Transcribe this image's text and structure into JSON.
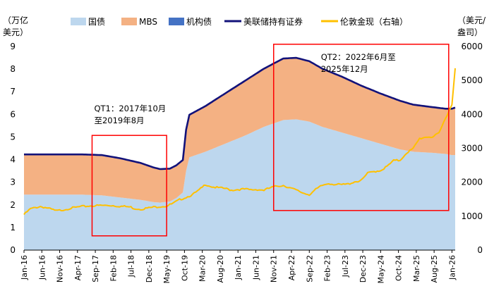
{
  "chart_data": {
    "type": "area",
    "title": "",
    "left_axis": {
      "unit_line1": "（万亿",
      "unit_line2": "美元）",
      "ylim": [
        0,
        9
      ],
      "ticks": [
        "0",
        "1",
        "2",
        "3",
        "4",
        "5",
        "6",
        "7",
        "8",
        "9"
      ]
    },
    "right_axis": {
      "unit_line1": "（美元/",
      "unit_line2": "盎司）",
      "ylim": [
        0,
        6000
      ],
      "ticks": [
        "0",
        "1000",
        "2000",
        "3000",
        "4000",
        "5000",
        "6000"
      ]
    },
    "x_labels": [
      "Jan-16",
      "Jun-16",
      "Nov-16",
      "Apr-17",
      "Sep-17",
      "Feb-18",
      "Jul-18",
      "Dec-18",
      "May-19",
      "Oct-19",
      "Mar-20",
      "Aug-20",
      "Jan-21",
      "Jun-21",
      "Nov-21",
      "Apr-22",
      "Sep-22",
      "Feb-23",
      "Jul-23",
      "Dec-23",
      "May-24",
      "Oct-24",
      "Mar-25",
      "Aug-25",
      "Jan-26"
    ],
    "legend": [
      {
        "name": "国债",
        "kind": "area",
        "color": "#BDD7EE"
      },
      {
        "name": "MBS",
        "kind": "area",
        "color": "#F4B183"
      },
      {
        "name": "机构债",
        "kind": "area",
        "color": "#4472C4"
      },
      {
        "name": "美联储持有证券",
        "kind": "line",
        "color": "#12127A"
      },
      {
        "name": "伦敦金现（右轴）",
        "kind": "line",
        "color": "#FFC000"
      }
    ],
    "series": [
      {
        "name": "国债",
        "axis": "left",
        "points": [
          [
            0,
            2.45
          ],
          [
            8,
            2.45
          ],
          [
            18,
            2.45
          ],
          [
            24,
            2.42
          ],
          [
            30,
            2.32
          ],
          [
            36,
            2.22
          ],
          [
            40,
            2.12
          ],
          [
            42,
            2.1
          ],
          [
            45,
            2.15
          ],
          [
            47,
            2.3
          ],
          [
            49,
            2.55
          ],
          [
            50,
            3.5
          ],
          [
            51,
            4.1
          ],
          [
            56,
            4.35
          ],
          [
            62,
            4.7
          ],
          [
            68,
            5.05
          ],
          [
            74,
            5.45
          ],
          [
            80,
            5.75
          ],
          [
            84,
            5.78
          ],
          [
            88,
            5.68
          ],
          [
            92,
            5.45
          ],
          [
            98,
            5.2
          ],
          [
            104,
            4.95
          ],
          [
            110,
            4.7
          ],
          [
            116,
            4.45
          ],
          [
            120,
            4.35
          ],
          [
            126,
            4.3
          ],
          [
            130,
            4.25
          ],
          [
            132,
            4.2
          ],
          [
            133,
            4.2
          ]
        ]
      },
      {
        "name": "MBS",
        "axis": "left",
        "points": [
          [
            0,
            1.75
          ],
          [
            8,
            1.75
          ],
          [
            18,
            1.75
          ],
          [
            24,
            1.74
          ],
          [
            30,
            1.7
          ],
          [
            36,
            1.6
          ],
          [
            40,
            1.5
          ],
          [
            42,
            1.45
          ],
          [
            45,
            1.42
          ],
          [
            47,
            1.4
          ],
          [
            49,
            1.4
          ],
          [
            50,
            1.8
          ],
          [
            51,
            1.9
          ],
          [
            56,
            2.0
          ],
          [
            62,
            2.2
          ],
          [
            68,
            2.4
          ],
          [
            74,
            2.55
          ],
          [
            80,
            2.7
          ],
          [
            84,
            2.7
          ],
          [
            88,
            2.65
          ],
          [
            92,
            2.55
          ],
          [
            98,
            2.45
          ],
          [
            104,
            2.3
          ],
          [
            110,
            2.2
          ],
          [
            116,
            2.13
          ],
          [
            120,
            2.06
          ],
          [
            126,
            2.0
          ],
          [
            130,
            1.98
          ],
          [
            132,
            2.03
          ],
          [
            133,
            2.08
          ]
        ]
      },
      {
        "name": "机构债",
        "axis": "left",
        "points": [
          [
            0,
            0.03
          ],
          [
            133,
            0.02
          ]
        ]
      },
      {
        "name": "美联储持有证券",
        "axis": "left",
        "points": [
          [
            0,
            4.23
          ],
          [
            8,
            4.23
          ],
          [
            18,
            4.23
          ],
          [
            24,
            4.2
          ],
          [
            30,
            4.05
          ],
          [
            36,
            3.85
          ],
          [
            40,
            3.65
          ],
          [
            42,
            3.58
          ],
          [
            45,
            3.6
          ],
          [
            47,
            3.75
          ],
          [
            49,
            3.98
          ],
          [
            50,
            5.32
          ],
          [
            51,
            5.98
          ],
          [
            56,
            6.37
          ],
          [
            62,
            6.92
          ],
          [
            68,
            7.47
          ],
          [
            74,
            8.02
          ],
          [
            80,
            8.47
          ],
          [
            84,
            8.5
          ],
          [
            88,
            8.35
          ],
          [
            92,
            8.02
          ],
          [
            98,
            7.67
          ],
          [
            104,
            7.27
          ],
          [
            110,
            6.92
          ],
          [
            116,
            6.6
          ],
          [
            120,
            6.43
          ],
          [
            126,
            6.32
          ],
          [
            130,
            6.25
          ],
          [
            132,
            6.25
          ],
          [
            133,
            6.3
          ]
        ]
      },
      {
        "name": "伦敦金现（右轴）",
        "axis": "right",
        "points": [
          [
            0,
            1060
          ],
          [
            2,
            1230
          ],
          [
            5,
            1300
          ],
          [
            7,
            1260
          ],
          [
            10,
            1170
          ],
          [
            12,
            1200
          ],
          [
            15,
            1260
          ],
          [
            18,
            1300
          ],
          [
            21,
            1320
          ],
          [
            24,
            1330
          ],
          [
            27,
            1330
          ],
          [
            29,
            1310
          ],
          [
            31,
            1300
          ],
          [
            33,
            1280
          ],
          [
            34,
            1240
          ],
          [
            36,
            1220
          ],
          [
            38,
            1250
          ],
          [
            40,
            1280
          ],
          [
            42,
            1300
          ],
          [
            44,
            1310
          ],
          [
            46,
            1390
          ],
          [
            48,
            1500
          ],
          [
            50,
            1570
          ],
          [
            52,
            1650
          ],
          [
            54,
            1780
          ],
          [
            56,
            1950
          ],
          [
            58,
            1880
          ],
          [
            60,
            1850
          ],
          [
            62,
            1830
          ],
          [
            64,
            1780
          ],
          [
            66,
            1800
          ],
          [
            68,
            1810
          ],
          [
            70,
            1790
          ],
          [
            72,
            1800
          ],
          [
            74,
            1780
          ],
          [
            76,
            1850
          ],
          [
            78,
            1900
          ],
          [
            80,
            1920
          ],
          [
            82,
            1850
          ],
          [
            84,
            1780
          ],
          [
            86,
            1700
          ],
          [
            88,
            1650
          ],
          [
            90,
            1800
          ],
          [
            92,
            1920
          ],
          [
            94,
            1980
          ],
          [
            96,
            1950
          ],
          [
            98,
            1940
          ],
          [
            100,
            1960
          ],
          [
            102,
            2030
          ],
          [
            104,
            2060
          ],
          [
            106,
            2280
          ],
          [
            108,
            2330
          ],
          [
            110,
            2360
          ],
          [
            112,
            2480
          ],
          [
            114,
            2650
          ],
          [
            116,
            2660
          ],
          [
            118,
            2880
          ],
          [
            120,
            3000
          ],
          [
            122,
            3300
          ],
          [
            124,
            3350
          ],
          [
            126,
            3350
          ],
          [
            128,
            3450
          ],
          [
            130,
            3900
          ],
          [
            131,
            4100
          ],
          [
            132,
            4300
          ],
          [
            133,
            5400
          ]
        ]
      }
    ],
    "annotations": [
      {
        "line1": "QT1：2017年10月",
        "line2": "至2019年8月",
        "x_range": [
          21,
          44
        ],
        "y_range": [
          0.63,
          5.07
        ]
      },
      {
        "line1": "QT2：2022年6月至",
        "line2": "2025年12月",
        "x_range": [
          77,
          131
        ],
        "y_range": [
          1.75,
          9.1
        ]
      }
    ],
    "x_range": [
      0,
      133
    ],
    "legend_position": "top"
  }
}
